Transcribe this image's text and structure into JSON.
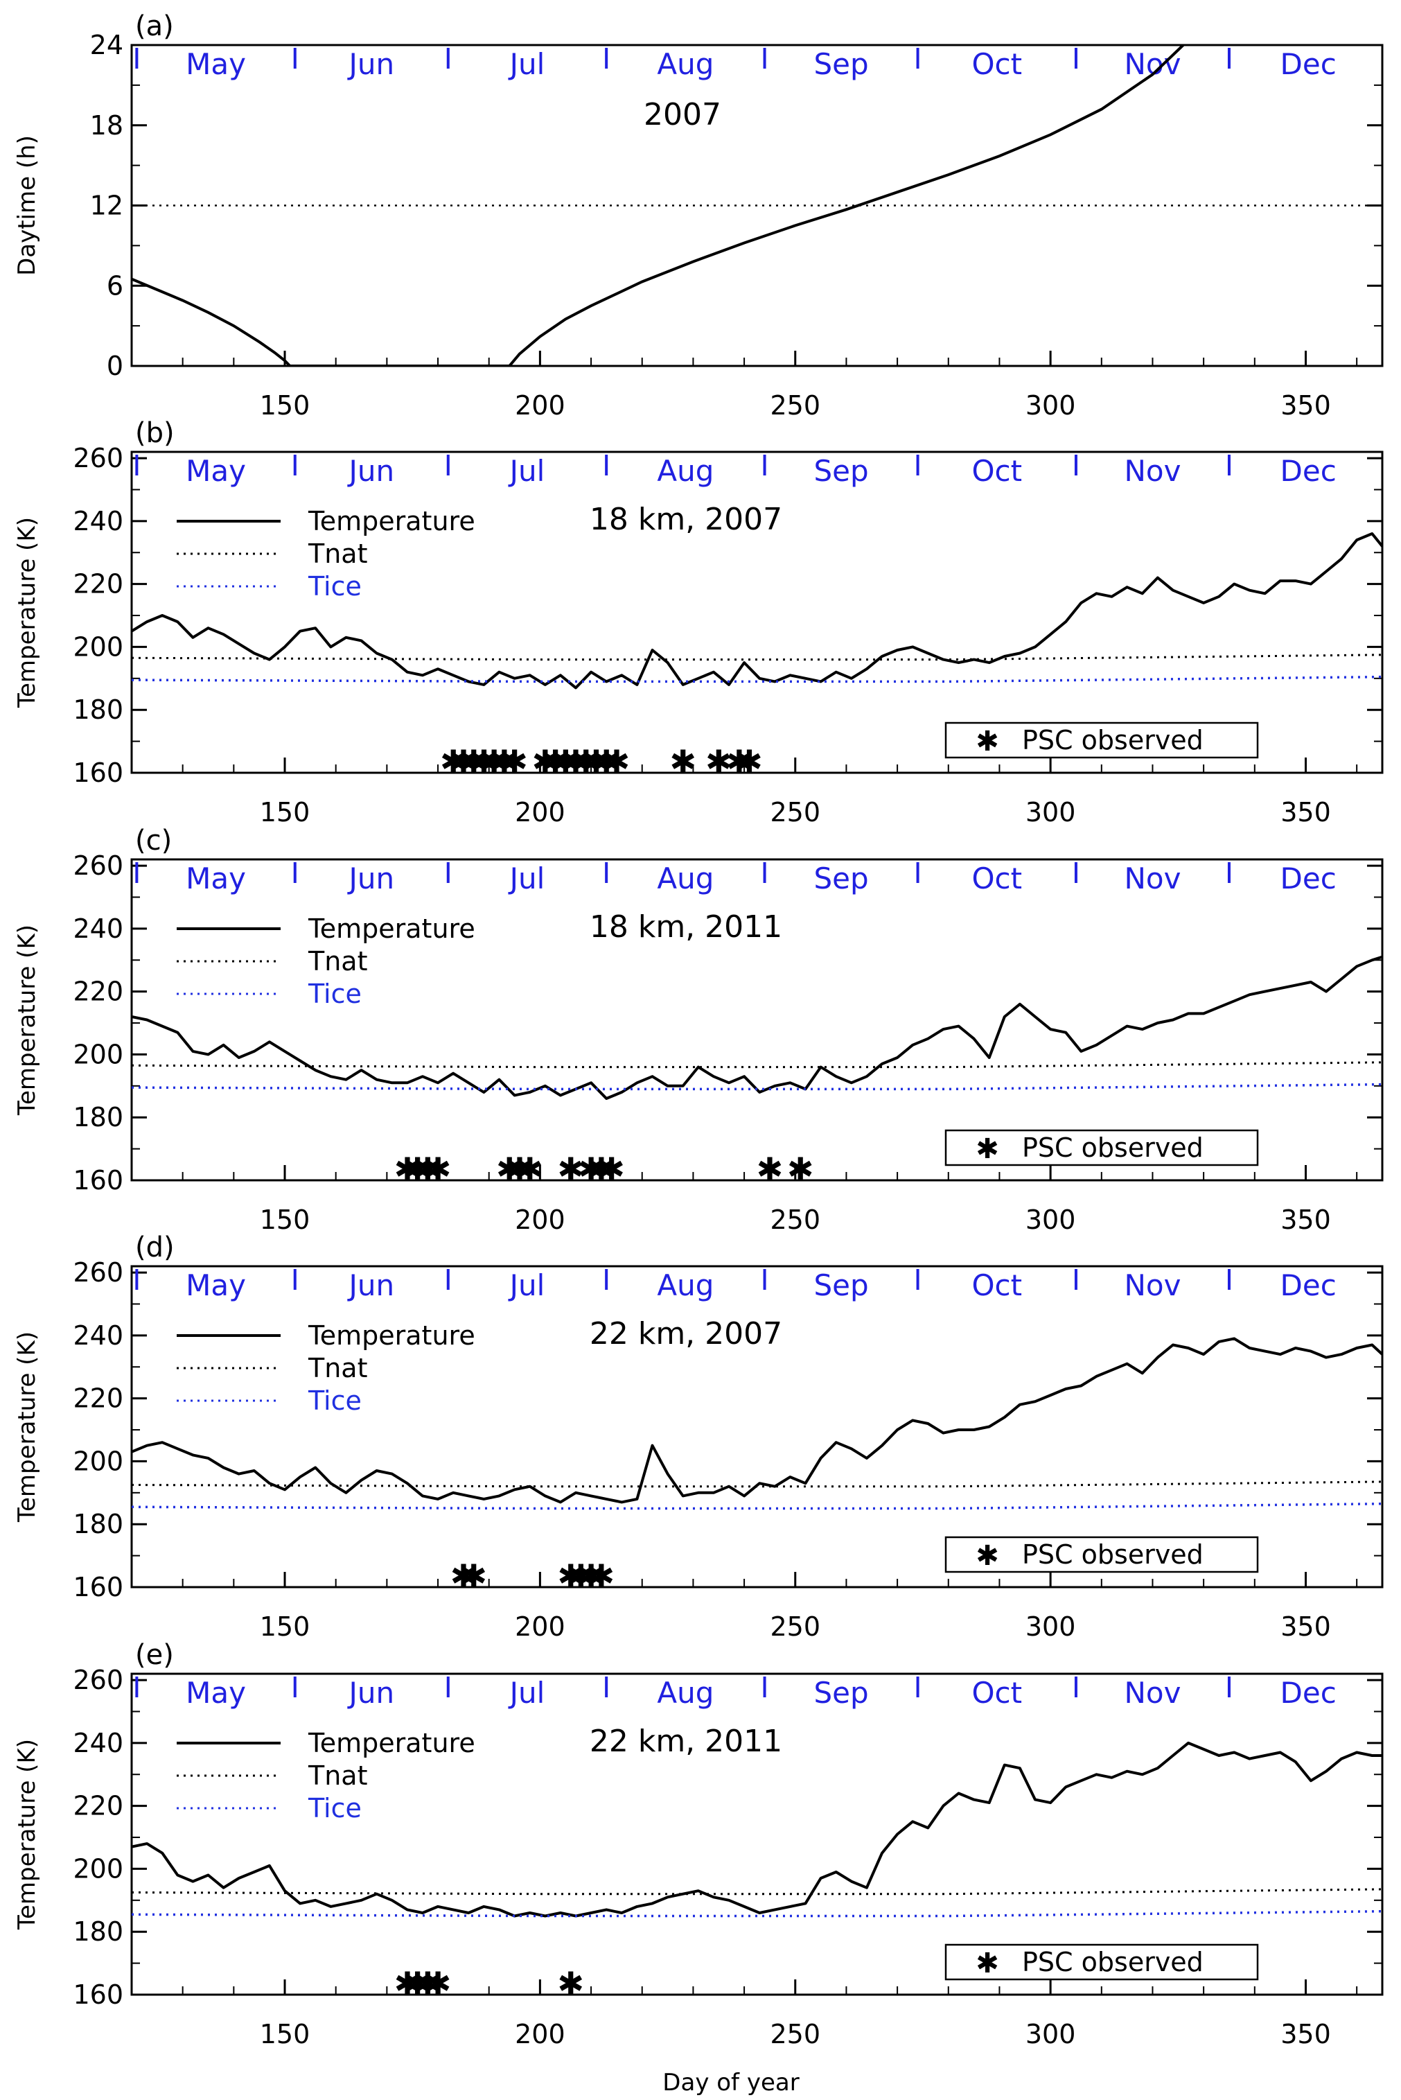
{
  "figure": {
    "xlabel": "Day of year",
    "xlim": [
      120,
      365
    ],
    "xticks": [
      150,
      200,
      250,
      300,
      350
    ],
    "months": [
      "May",
      "Jun",
      "Jul",
      "Aug",
      "Sep",
      "Oct",
      "Nov",
      "Dec"
    ],
    "month_starts": [
      121,
      152,
      182,
      213,
      244,
      274,
      305,
      335
    ],
    "month_color": "#2020e0",
    "tice_color": "#2030e0",
    "legend_labels": {
      "temperature": "Temperature",
      "tnat": "Tnat",
      "tice": "Tice",
      "psc": "PSC observed"
    }
  },
  "chart_data": [
    {
      "panel": "(a)",
      "type": "line",
      "annotation": "2007",
      "ylabel": "Daytime (h)",
      "ylim": [
        0,
        24
      ],
      "yticks": [
        0,
        6,
        12,
        18,
        24
      ],
      "reference_line": 12,
      "series": [
        {
          "segment": "early",
          "x": [
            120,
            125,
            130,
            135,
            140,
            145,
            148,
            150,
            151
          ],
          "y": [
            6.5,
            5.7,
            4.9,
            4.0,
            3.0,
            1.8,
            1.0,
            0.4,
            0
          ]
        },
        {
          "segment": "polar-night",
          "x": [
            151,
            194
          ],
          "y": [
            0,
            0
          ]
        },
        {
          "segment": "late",
          "x": [
            194,
            196,
            200,
            205,
            210,
            220,
            230,
            240,
            250,
            260,
            270,
            280,
            290,
            300,
            310,
            320,
            326
          ],
          "y": [
            0,
            0.9,
            2.2,
            3.5,
            4.5,
            6.3,
            7.8,
            9.2,
            10.5,
            11.7,
            13.0,
            14.3,
            15.7,
            17.3,
            19.2,
            21.8,
            24
          ]
        }
      ]
    },
    {
      "panel": "(b)",
      "type": "line",
      "annotation": "18 km,  2007",
      "ylabel": "Temperature (K)",
      "ylim": [
        160,
        262
      ],
      "yticks": [
        160,
        180,
        200,
        220,
        240,
        260
      ],
      "series": [
        {
          "name": "Temperature",
          "x": [
            120,
            123,
            126,
            129,
            132,
            135,
            138,
            141,
            144,
            147,
            150,
            153,
            156,
            159,
            162,
            165,
            168,
            171,
            174,
            177,
            180,
            183,
            186,
            189,
            192,
            195,
            198,
            201,
            204,
            207,
            210,
            213,
            216,
            219,
            222,
            225,
            228,
            231,
            234,
            237,
            240,
            243,
            246,
            249,
            252,
            255,
            258,
            261,
            264,
            267,
            270,
            273,
            276,
            279,
            282,
            285,
            288,
            291,
            294,
            297,
            300,
            303,
            306,
            309,
            312,
            315,
            318,
            321,
            324,
            327,
            330,
            333,
            336,
            339,
            342,
            345,
            348,
            351,
            354,
            357,
            360,
            363,
            365
          ],
          "y": [
            205,
            208,
            210,
            208,
            203,
            206,
            204,
            201,
            198,
            196,
            200,
            205,
            206,
            200,
            203,
            202,
            198,
            196,
            192,
            191,
            193,
            191,
            189,
            188,
            192,
            190,
            191,
            188,
            191,
            187,
            192,
            189,
            191,
            188,
            199,
            195,
            188,
            190,
            192,
            188,
            195,
            190,
            189,
            191,
            190,
            189,
            192,
            190,
            193,
            197,
            199,
            200,
            198,
            196,
            195,
            196,
            195,
            197,
            198,
            200,
            204,
            208,
            214,
            217,
            216,
            219,
            217,
            222,
            218,
            216,
            214,
            216,
            220,
            218,
            217,
            221,
            221,
            220,
            224,
            228,
            234,
            236,
            232
          ]
        },
        {
          "name": "Tnat",
          "x": [
            120,
            200,
            280,
            365
          ],
          "y": [
            196.5,
            196,
            196,
            197.5
          ]
        },
        {
          "name": "Tice",
          "x": [
            120,
            200,
            280,
            365
          ],
          "y": [
            189.5,
            189,
            189,
            190.5
          ]
        }
      ],
      "psc_days": [
        183,
        185,
        187,
        189,
        191,
        193,
        195,
        201,
        203,
        205,
        207,
        209,
        211,
        213,
        215,
        228,
        235,
        239,
        241
      ]
    },
    {
      "panel": "(c)",
      "type": "line",
      "annotation": "18 km,  2011",
      "ylabel": "Temperature (K)",
      "ylim": [
        160,
        262
      ],
      "yticks": [
        160,
        180,
        200,
        220,
        240,
        260
      ],
      "series": [
        {
          "name": "Temperature",
          "x": [
            120,
            123,
            126,
            129,
            132,
            135,
            138,
            141,
            144,
            147,
            150,
            153,
            156,
            159,
            162,
            165,
            168,
            171,
            174,
            177,
            180,
            183,
            186,
            189,
            192,
            195,
            198,
            201,
            204,
            207,
            210,
            213,
            216,
            219,
            222,
            225,
            228,
            231,
            234,
            237,
            240,
            243,
            246,
            249,
            252,
            255,
            258,
            261,
            264,
            267,
            270,
            273,
            276,
            279,
            282,
            285,
            288,
            291,
            294,
            297,
            300,
            303,
            306,
            309,
            312,
            315,
            318,
            321,
            324,
            327,
            330,
            333,
            336,
            339,
            342,
            345,
            348,
            351,
            354,
            357,
            360,
            363,
            365
          ],
          "y": [
            212,
            211,
            209,
            207,
            201,
            200,
            203,
            199,
            201,
            204,
            201,
            198,
            195,
            193,
            192,
            195,
            192,
            191,
            191,
            193,
            191,
            194,
            191,
            188,
            192,
            187,
            188,
            190,
            187,
            189,
            191,
            186,
            188,
            191,
            193,
            190,
            190,
            196,
            193,
            191,
            193,
            188,
            190,
            191,
            189,
            196,
            193,
            191,
            193,
            197,
            199,
            203,
            205,
            208,
            209,
            205,
            199,
            212,
            216,
            212,
            208,
            207,
            201,
            203,
            206,
            209,
            208,
            210,
            211,
            213,
            213,
            215,
            217,
            219,
            220,
            221,
            222,
            223,
            220,
            224,
            228,
            230,
            231
          ]
        },
        {
          "name": "Tnat",
          "x": [
            120,
            200,
            280,
            365
          ],
          "y": [
            196.5,
            196,
            196,
            197.5
          ]
        },
        {
          "name": "Tice",
          "x": [
            120,
            200,
            280,
            365
          ],
          "y": [
            189.5,
            189,
            189,
            190.5
          ]
        }
      ],
      "psc_days": [
        174,
        176,
        178,
        180,
        194,
        196,
        198,
        206,
        210,
        212,
        214,
        245,
        251
      ]
    },
    {
      "panel": "(d)",
      "type": "line",
      "annotation": "22 km,  2007",
      "ylabel": "Temperature (K)",
      "ylim": [
        160,
        262
      ],
      "yticks": [
        160,
        180,
        200,
        220,
        240,
        260
      ],
      "series": [
        {
          "name": "Temperature",
          "x": [
            120,
            123,
            126,
            129,
            132,
            135,
            138,
            141,
            144,
            147,
            150,
            153,
            156,
            159,
            162,
            165,
            168,
            171,
            174,
            177,
            180,
            183,
            186,
            189,
            192,
            195,
            198,
            201,
            204,
            207,
            210,
            213,
            216,
            219,
            222,
            225,
            228,
            231,
            234,
            237,
            240,
            243,
            246,
            249,
            252,
            255,
            258,
            261,
            264,
            267,
            270,
            273,
            276,
            279,
            282,
            285,
            288,
            291,
            294,
            297,
            300,
            303,
            306,
            309,
            312,
            315,
            318,
            321,
            324,
            327,
            330,
            333,
            336,
            339,
            342,
            345,
            348,
            351,
            354,
            357,
            360,
            363,
            365
          ],
          "y": [
            203,
            205,
            206,
            204,
            202,
            201,
            198,
            196,
            197,
            193,
            191,
            195,
            198,
            193,
            190,
            194,
            197,
            196,
            193,
            189,
            188,
            190,
            189,
            188,
            189,
            191,
            192,
            189,
            187,
            190,
            189,
            188,
            187,
            188,
            205,
            196,
            189,
            190,
            190,
            192,
            189,
            193,
            192,
            195,
            193,
            201,
            206,
            204,
            201,
            205,
            210,
            213,
            212,
            209,
            210,
            210,
            211,
            214,
            218,
            219,
            221,
            223,
            224,
            227,
            229,
            231,
            228,
            233,
            237,
            236,
            234,
            238,
            239,
            236,
            235,
            234,
            236,
            235,
            233,
            234,
            236,
            237,
            234
          ]
        },
        {
          "name": "Tnat",
          "x": [
            120,
            200,
            280,
            365
          ],
          "y": [
            192.5,
            192,
            192,
            193.5
          ]
        },
        {
          "name": "Tice",
          "x": [
            120,
            200,
            280,
            365
          ],
          "y": [
            185.5,
            185,
            185,
            186.5
          ]
        }
      ],
      "psc_days": [
        185,
        187,
        206,
        208,
        210,
        212
      ]
    },
    {
      "panel": "(e)",
      "type": "line",
      "annotation": "22 km,  2011",
      "ylabel": "Temperature (K)",
      "ylim": [
        160,
        262
      ],
      "yticks": [
        160,
        180,
        200,
        220,
        240,
        260
      ],
      "series": [
        {
          "name": "Temperature",
          "x": [
            120,
            123,
            126,
            129,
            132,
            135,
            138,
            141,
            144,
            147,
            150,
            153,
            156,
            159,
            162,
            165,
            168,
            171,
            174,
            177,
            180,
            183,
            186,
            189,
            192,
            195,
            198,
            201,
            204,
            207,
            210,
            213,
            216,
            219,
            222,
            225,
            228,
            231,
            234,
            237,
            240,
            243,
            246,
            249,
            252,
            255,
            258,
            261,
            264,
            267,
            270,
            273,
            276,
            279,
            282,
            285,
            288,
            291,
            294,
            297,
            300,
            303,
            306,
            309,
            312,
            315,
            318,
            321,
            324,
            327,
            330,
            333,
            336,
            339,
            342,
            345,
            348,
            351,
            354,
            357,
            360,
            363,
            365
          ],
          "y": [
            207,
            208,
            205,
            198,
            196,
            198,
            194,
            197,
            199,
            201,
            193,
            189,
            190,
            188,
            189,
            190,
            192,
            190,
            187,
            186,
            188,
            187,
            186,
            188,
            187,
            185,
            186,
            185,
            186,
            185,
            186,
            187,
            186,
            188,
            189,
            191,
            192,
            193,
            191,
            190,
            188,
            186,
            187,
            188,
            189,
            197,
            199,
            196,
            194,
            205,
            211,
            215,
            213,
            220,
            224,
            222,
            221,
            233,
            232,
            222,
            221,
            226,
            228,
            230,
            229,
            231,
            230,
            232,
            236,
            240,
            238,
            236,
            237,
            235,
            236,
            237,
            234,
            228,
            231,
            235,
            237,
            236,
            236
          ]
        },
        {
          "name": "Tnat",
          "x": [
            120,
            200,
            280,
            365
          ],
          "y": [
            192.5,
            192,
            192,
            193.5
          ]
        },
        {
          "name": "Tice",
          "x": [
            120,
            200,
            280,
            365
          ],
          "y": [
            185.5,
            185,
            185,
            186.5
          ]
        }
      ],
      "psc_days": [
        174,
        176,
        178,
        180,
        206
      ]
    }
  ]
}
